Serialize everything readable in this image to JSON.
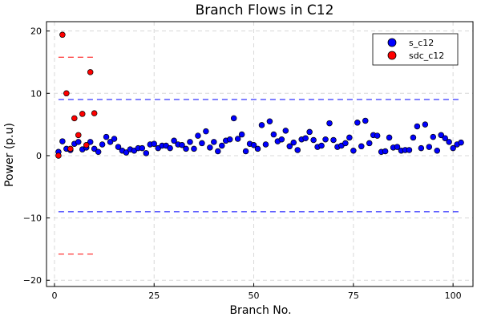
{
  "chart_data": {
    "type": "scatter",
    "title": "Branch Flows in C12",
    "xlabel": "Branch No.",
    "ylabel": "Power (p.u)",
    "xlim": [
      -2,
      105
    ],
    "ylim": [
      -21,
      21.5
    ],
    "xticks": [
      0,
      25,
      50,
      75,
      100
    ],
    "yticks": [
      -20,
      -10,
      0,
      10,
      20
    ],
    "grid": true,
    "legend_position": "top-right",
    "series": [
      {
        "name": "s_c12",
        "color": "#0000ff",
        "points": [
          [
            1,
            0.6
          ],
          [
            2,
            2.3
          ],
          [
            3,
            1.1
          ],
          [
            4,
            0.9
          ],
          [
            5,
            1.9
          ],
          [
            6,
            2.2
          ],
          [
            7,
            1.0
          ],
          [
            8,
            1.3
          ],
          [
            9,
            2.2
          ],
          [
            10,
            1.1
          ],
          [
            11,
            0.6
          ],
          [
            12,
            1.8
          ],
          [
            13,
            3.0
          ],
          [
            14,
            2.2
          ],
          [
            15,
            2.7
          ],
          [
            16,
            1.4
          ],
          [
            17,
            0.8
          ],
          [
            18,
            0.5
          ],
          [
            19,
            1.0
          ],
          [
            20,
            0.8
          ],
          [
            21,
            1.2
          ],
          [
            22,
            1.2
          ],
          [
            23,
            0.4
          ],
          [
            24,
            1.8
          ],
          [
            25,
            1.9
          ],
          [
            26,
            1.2
          ],
          [
            27,
            1.6
          ],
          [
            28,
            1.6
          ],
          [
            29,
            1.2
          ],
          [
            30,
            2.4
          ],
          [
            31,
            1.8
          ],
          [
            32,
            1.7
          ],
          [
            33,
            1.1
          ],
          [
            34,
            2.2
          ],
          [
            35,
            1.1
          ],
          [
            36,
            3.2
          ],
          [
            37,
            2.0
          ],
          [
            38,
            3.9
          ],
          [
            39,
            1.3
          ],
          [
            40,
            2.2
          ],
          [
            41,
            0.7
          ],
          [
            42,
            1.6
          ],
          [
            43,
            2.4
          ],
          [
            44,
            2.6
          ],
          [
            45,
            6.0
          ],
          [
            46,
            2.7
          ],
          [
            47,
            3.4
          ],
          [
            48,
            0.7
          ],
          [
            49,
            1.9
          ],
          [
            50,
            1.7
          ],
          [
            51,
            1.1
          ],
          [
            52,
            4.9
          ],
          [
            53,
            1.8
          ],
          [
            54,
            5.5
          ],
          [
            55,
            3.4
          ],
          [
            56,
            2.3
          ],
          [
            57,
            2.6
          ],
          [
            58,
            4.0
          ],
          [
            59,
            1.5
          ],
          [
            60,
            2.1
          ],
          [
            61,
            0.9
          ],
          [
            62,
            2.6
          ],
          [
            63,
            2.8
          ],
          [
            64,
            3.8
          ],
          [
            65,
            2.5
          ],
          [
            66,
            1.4
          ],
          [
            67,
            1.6
          ],
          [
            68,
            2.6
          ],
          [
            69,
            5.2
          ],
          [
            70,
            2.5
          ],
          [
            71,
            1.4
          ],
          [
            72,
            1.6
          ],
          [
            73,
            2.0
          ],
          [
            74,
            2.9
          ],
          [
            75,
            0.8
          ],
          [
            76,
            5.3
          ],
          [
            77,
            1.5
          ],
          [
            78,
            5.6
          ],
          [
            79,
            2.0
          ],
          [
            80,
            3.3
          ],
          [
            81,
            3.2
          ],
          [
            82,
            0.6
          ],
          [
            83,
            0.7
          ],
          [
            84,
            2.9
          ],
          [
            85,
            1.3
          ],
          [
            86,
            1.4
          ],
          [
            87,
            0.8
          ],
          [
            88,
            0.9
          ],
          [
            89,
            0.9
          ],
          [
            90,
            2.9
          ],
          [
            91,
            4.7
          ],
          [
            92,
            1.2
          ],
          [
            93,
            5.0
          ],
          [
            94,
            1.4
          ],
          [
            95,
            3.0
          ],
          [
            96,
            0.8
          ],
          [
            97,
            3.3
          ],
          [
            98,
            2.8
          ],
          [
            99,
            2.2
          ],
          [
            100,
            1.2
          ],
          [
            101,
            1.8
          ],
          [
            102,
            2.1
          ]
        ],
        "limit_lines": {
          "y": [
            9.0,
            -9.0
          ],
          "x_range": [
            1,
            102
          ]
        }
      },
      {
        "name": "sdc_c12",
        "color": "#ff0000",
        "points": [
          [
            1,
            0.0
          ],
          [
            2,
            19.4
          ],
          [
            3,
            10.0
          ],
          [
            4,
            1.1
          ],
          [
            5,
            6.0
          ],
          [
            6,
            3.3
          ],
          [
            7,
            6.7
          ],
          [
            8,
            1.7
          ],
          [
            9,
            13.4
          ],
          [
            10,
            6.8
          ]
        ],
        "limit_lines": {
          "y": [
            15.8,
            -15.8
          ],
          "x_range": [
            1,
            10.6
          ]
        }
      }
    ]
  }
}
